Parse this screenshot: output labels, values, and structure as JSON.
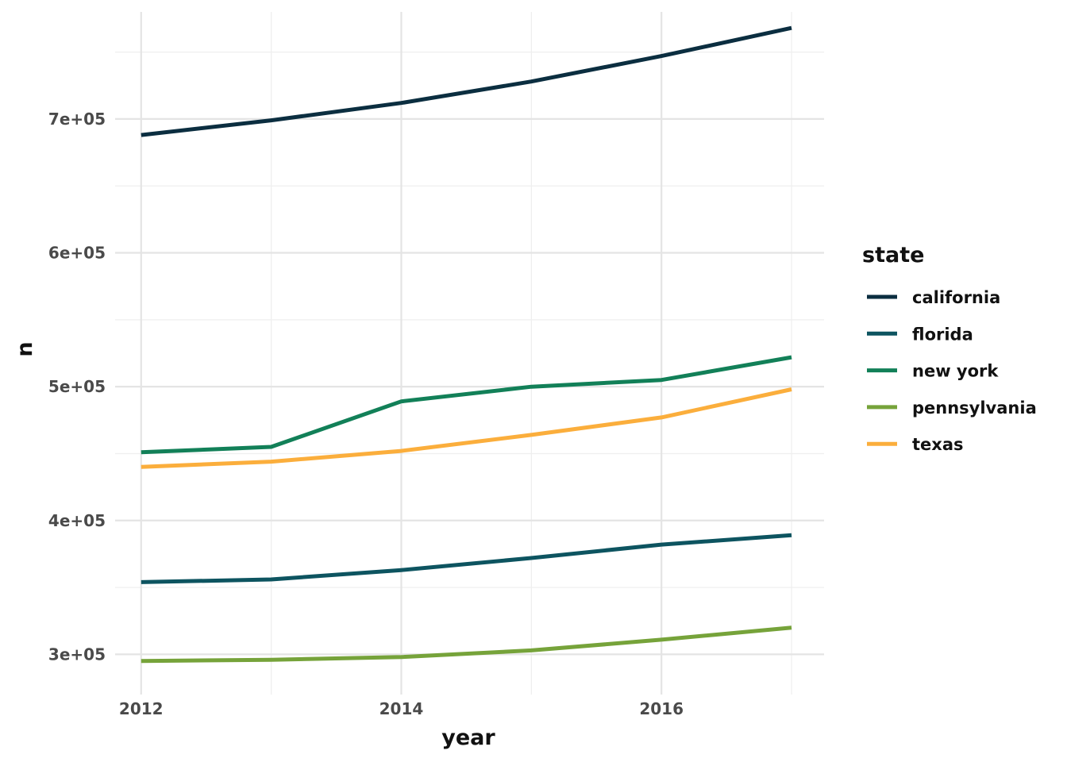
{
  "chart_data": {
    "type": "line",
    "title": "",
    "xlabel": "year",
    "ylabel": "n",
    "x": [
      2012,
      2013,
      2014,
      2015,
      2016,
      2017
    ],
    "xlim": [
      2011.8,
      2017.25
    ],
    "ylim": [
      270000,
      780000
    ],
    "x_ticks": [
      2012,
      2014,
      2016
    ],
    "x_tick_labels": [
      "2012",
      "2014",
      "2016"
    ],
    "y_ticks": [
      300000,
      400000,
      500000,
      600000,
      700000
    ],
    "y_tick_labels": [
      "3e+05",
      "4e+05",
      "5e+05",
      "6e+05",
      "7e+05"
    ],
    "grid": true,
    "legend_title": "state",
    "legend_position": "right",
    "series": [
      {
        "name": "california",
        "color": "#0b2e40",
        "values": [
          688000,
          699000,
          712000,
          728000,
          747000,
          768000
        ]
      },
      {
        "name": "florida",
        "color": "#0d5460",
        "values": [
          354000,
          356000,
          363000,
          372000,
          382000,
          389000
        ]
      },
      {
        "name": "new york",
        "color": "#128058",
        "values": [
          451000,
          455000,
          489000,
          500000,
          505000,
          522000
        ]
      },
      {
        "name": "pennsylvania",
        "color": "#76a33a",
        "values": [
          295000,
          296000,
          298000,
          303000,
          311000,
          320000
        ]
      },
      {
        "name": "texas",
        "color": "#fbae3c",
        "values": [
          440000,
          444000,
          452000,
          464000,
          477000,
          498000
        ]
      }
    ]
  }
}
